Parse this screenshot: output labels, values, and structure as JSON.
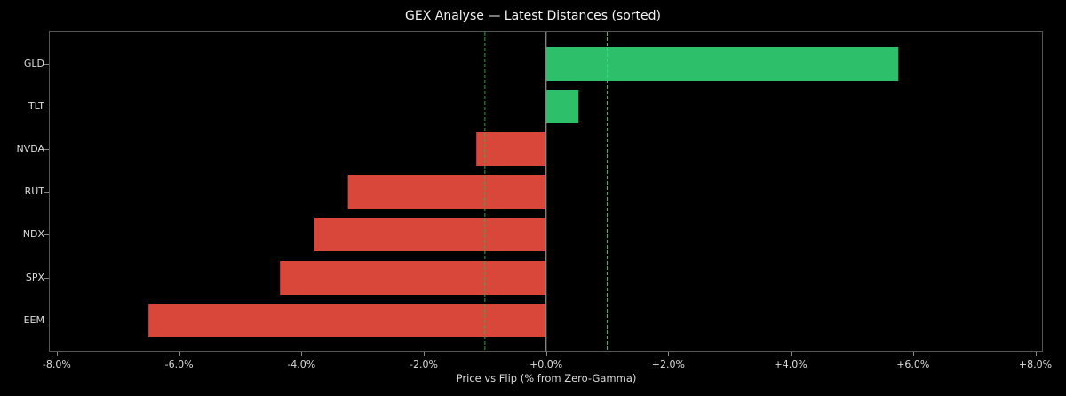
{
  "chart_data": {
    "type": "bar",
    "orientation": "horizontal",
    "title": "GEX Analyse — Latest Distances (sorted)",
    "xlabel": "Price vs Flip (% from Zero-Gamma)",
    "ylabel": "",
    "xlim": [
      -8.0,
      8.0
    ],
    "x_ticks": [
      "-8.0%",
      "-6.0%",
      "-4.0%",
      "-2.0%",
      "+0.0%",
      "+2.0%",
      "+4.0%",
      "+6.0%",
      "+8.0%"
    ],
    "categories": [
      "GLD",
      "TLT",
      "NVDA",
      "RUT",
      "NDX",
      "SPX",
      "EEM"
    ],
    "values": [
      5.76,
      0.53,
      -1.14,
      -3.24,
      -3.79,
      -4.35,
      -6.5
    ],
    "reference_lines": [
      {
        "x": 0.0,
        "style": "solid",
        "color": "#888888"
      },
      {
        "x": -1.0,
        "style": "dashed",
        "color": "#1db954"
      },
      {
        "x": 1.0,
        "style": "dashed",
        "color": "#2ee08a"
      }
    ],
    "colors": {
      "positive": "#2ebf6a",
      "negative": "#d9473b"
    },
    "grid": false,
    "legend": null
  }
}
